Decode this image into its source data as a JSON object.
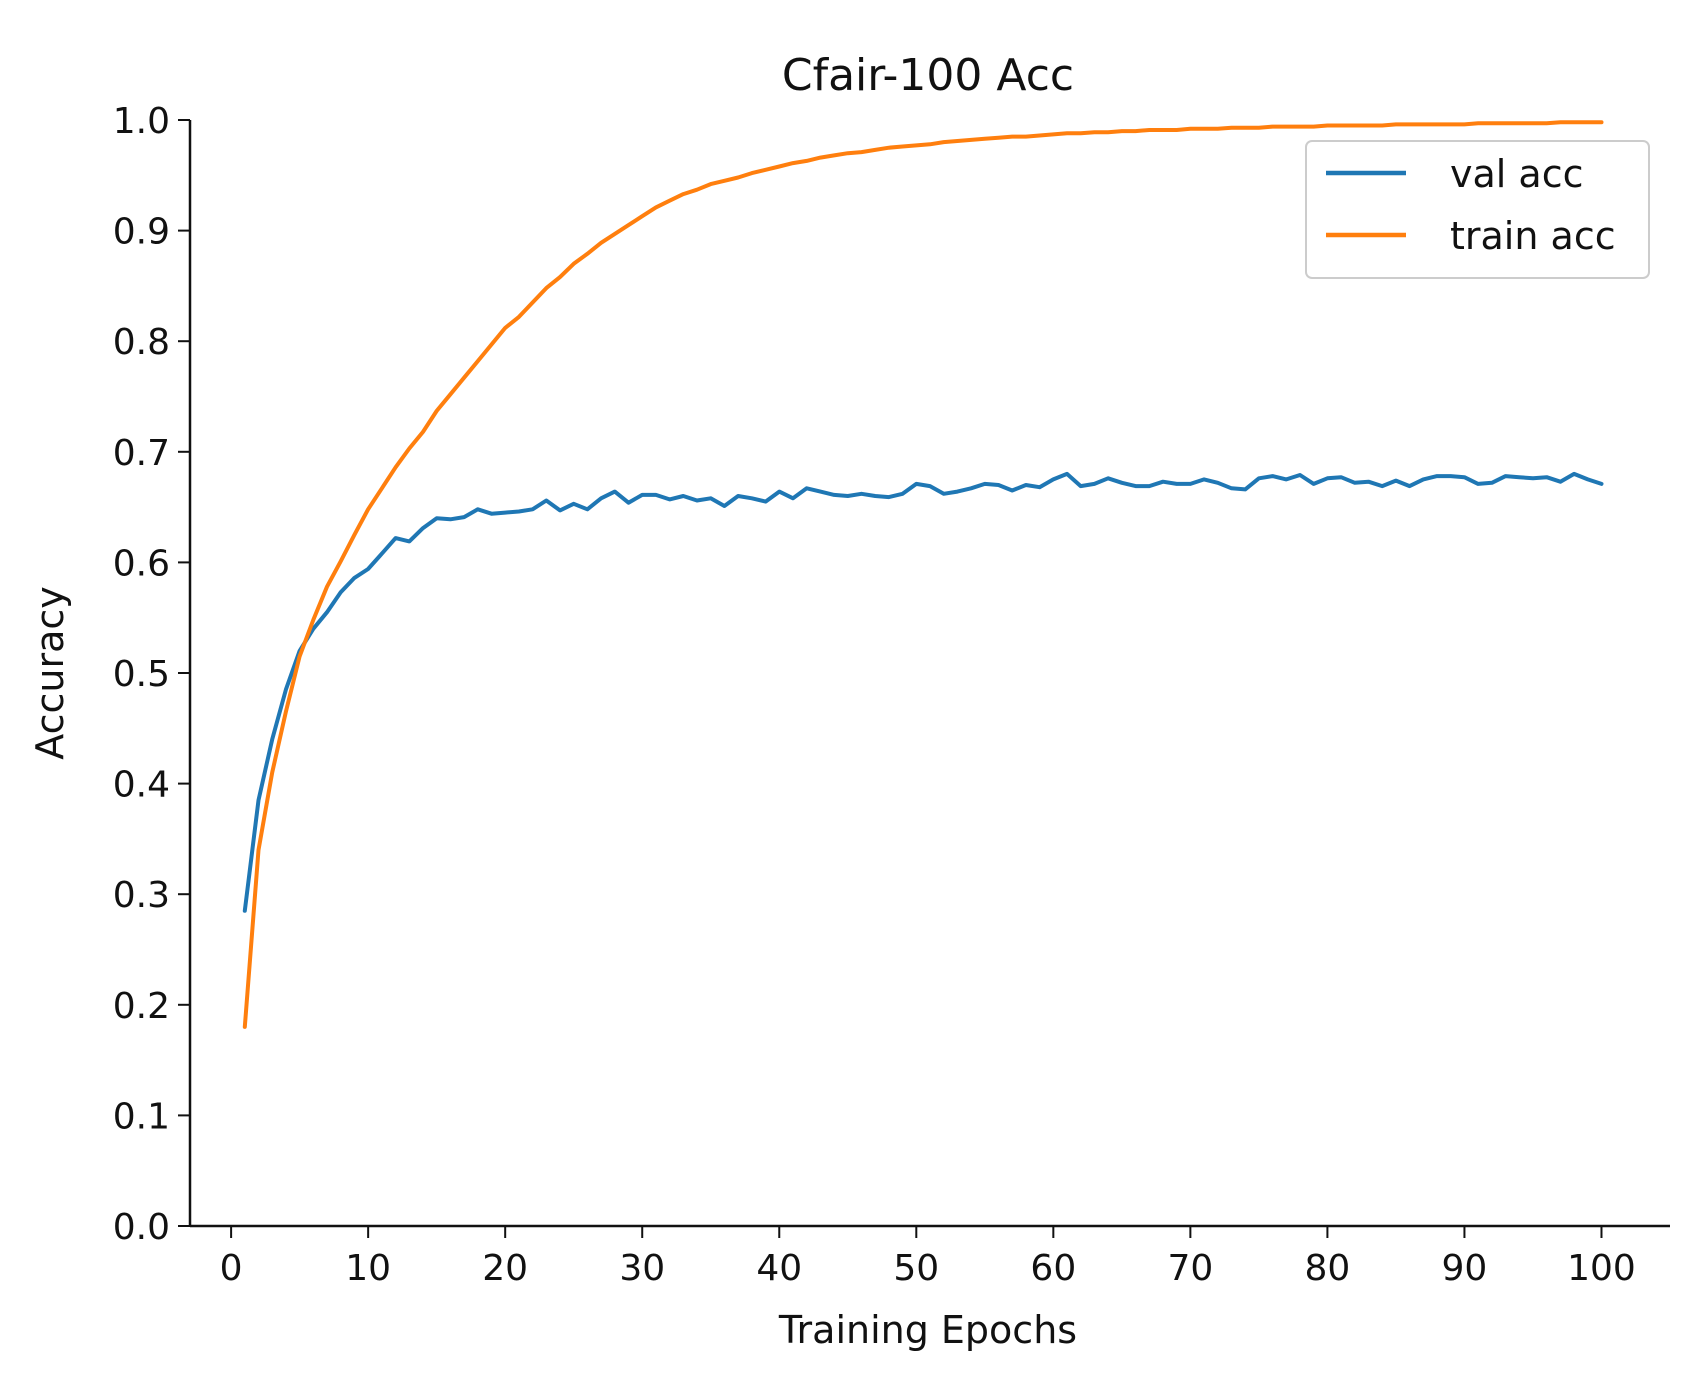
{
  "chart_data": {
    "type": "line",
    "title": "Cfair-100  Acc",
    "xlabel": "Training Epochs",
    "ylabel": "Accuracy",
    "xlim": [
      -3,
      105
    ],
    "ylim": [
      0.0,
      1.0
    ],
    "xticks": [
      0,
      10,
      20,
      30,
      40,
      50,
      60,
      70,
      80,
      90,
      100
    ],
    "yticks": [
      0.0,
      0.1,
      0.2,
      0.3,
      0.4,
      0.5,
      0.6,
      0.7,
      0.8,
      0.9,
      1.0
    ],
    "grid": false,
    "legend_position": "top-right",
    "x": [
      1,
      2,
      3,
      4,
      5,
      6,
      7,
      8,
      9,
      10,
      11,
      12,
      13,
      14,
      15,
      16,
      17,
      18,
      19,
      20,
      21,
      22,
      23,
      24,
      25,
      26,
      27,
      28,
      29,
      30,
      31,
      32,
      33,
      34,
      35,
      36,
      37,
      38,
      39,
      40,
      41,
      42,
      43,
      44,
      45,
      46,
      47,
      48,
      49,
      50,
      51,
      52,
      53,
      54,
      55,
      56,
      57,
      58,
      59,
      60,
      61,
      62,
      63,
      64,
      65,
      66,
      67,
      68,
      69,
      70,
      71,
      72,
      73,
      74,
      75,
      76,
      77,
      78,
      79,
      80,
      81,
      82,
      83,
      84,
      85,
      86,
      87,
      88,
      89,
      90,
      91,
      92,
      93,
      94,
      95,
      96,
      97,
      98,
      99,
      100
    ],
    "series": [
      {
        "name": "val acc",
        "color": "#1f77b4",
        "values": [
          0.285,
          0.385,
          0.44,
          0.485,
          0.52,
          0.54,
          0.555,
          0.573,
          0.586,
          0.594,
          0.608,
          0.622,
          0.619,
          0.631,
          0.64,
          0.639,
          0.641,
          0.648,
          0.644,
          0.645,
          0.646,
          0.648,
          0.656,
          0.647,
          0.653,
          0.648,
          0.658,
          0.664,
          0.654,
          0.661,
          0.661,
          0.657,
          0.66,
          0.656,
          0.658,
          0.651,
          0.66,
          0.658,
          0.655,
          0.664,
          0.658,
          0.667,
          0.664,
          0.661,
          0.66,
          0.662,
          0.66,
          0.659,
          0.662,
          0.671,
          0.669,
          0.662,
          0.664,
          0.667,
          0.671,
          0.67,
          0.665,
          0.67,
          0.668,
          0.675,
          0.68,
          0.669,
          0.671,
          0.676,
          0.672,
          0.669,
          0.669,
          0.673,
          0.671,
          0.671,
          0.675,
          0.672,
          0.667,
          0.666,
          0.676,
          0.678,
          0.675,
          0.679,
          0.671,
          0.676,
          0.677,
          0.672,
          0.673,
          0.669,
          0.674,
          0.669,
          0.675,
          0.678,
          0.678,
          0.677,
          0.671,
          0.672,
          0.678,
          0.677,
          0.676,
          0.677,
          0.673,
          0.68,
          0.675,
          0.671
        ]
      },
      {
        "name": "train acc",
        "color": "#ff7f0e",
        "values": [
          0.18,
          0.34,
          0.41,
          0.465,
          0.515,
          0.548,
          0.578,
          0.601,
          0.625,
          0.648,
          0.667,
          0.686,
          0.703,
          0.718,
          0.737,
          0.752,
          0.767,
          0.782,
          0.797,
          0.812,
          0.822,
          0.835,
          0.848,
          0.858,
          0.87,
          0.879,
          0.889,
          0.897,
          0.905,
          0.913,
          0.921,
          0.927,
          0.933,
          0.937,
          0.942,
          0.945,
          0.948,
          0.952,
          0.955,
          0.958,
          0.961,
          0.963,
          0.966,
          0.968,
          0.97,
          0.971,
          0.973,
          0.975,
          0.976,
          0.977,
          0.978,
          0.98,
          0.981,
          0.982,
          0.983,
          0.984,
          0.985,
          0.985,
          0.986,
          0.987,
          0.988,
          0.988,
          0.989,
          0.989,
          0.99,
          0.99,
          0.991,
          0.991,
          0.991,
          0.992,
          0.992,
          0.992,
          0.993,
          0.993,
          0.993,
          0.994,
          0.994,
          0.994,
          0.994,
          0.995,
          0.995,
          0.995,
          0.995,
          0.995,
          0.996,
          0.996,
          0.996,
          0.996,
          0.996,
          0.996,
          0.997,
          0.997,
          0.997,
          0.997,
          0.997,
          0.997,
          0.998,
          0.998,
          0.998,
          0.998
        ]
      }
    ]
  }
}
